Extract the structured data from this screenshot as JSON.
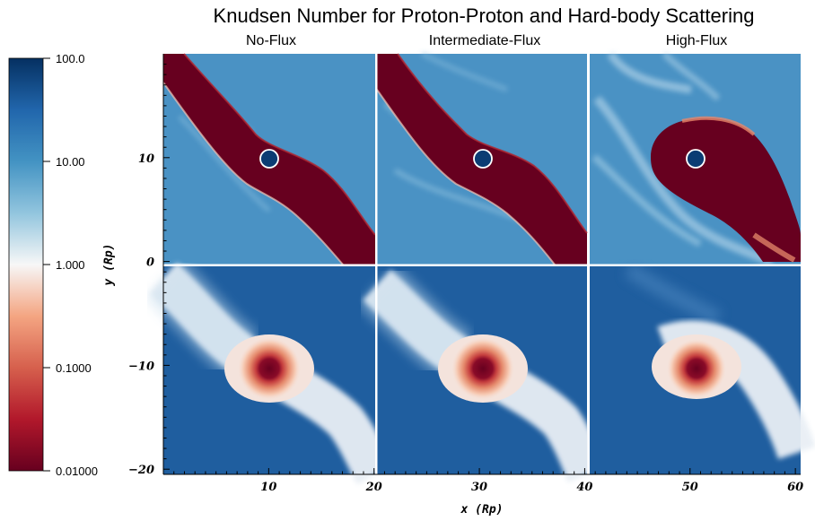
{
  "chart_data": {
    "type": "heatmap",
    "title": "Knudsen Number for Proton-Proton and Hard-body Scattering",
    "columns": [
      "No-Flux",
      "Intermediate-Flux",
      "High-Flux"
    ],
    "xlabel": "x (Rp)",
    "ylabel": "y (Rp)",
    "x_ticks": [
      "10",
      "20",
      "30",
      "40",
      "50",
      "60"
    ],
    "y_ticks": [
      "10",
      "0",
      "−10",
      "−20"
    ],
    "xlim": [
      0,
      60.5
    ],
    "ylim": [
      -20.5,
      20
    ],
    "colorbar": {
      "scale": "log",
      "min": 0.01,
      "max": 100.0,
      "tick_labels": [
        "100.0",
        "10.00",
        "1.000",
        "0.1000",
        "0.01000"
      ],
      "colormap": "RdBu"
    },
    "panels": [
      {
        "row": "top",
        "column": "No-Flux",
        "planet_center": [
          10,
          10
        ]
      },
      {
        "row": "top",
        "column": "Intermediate-Flux",
        "planet_center": [
          30,
          10
        ]
      },
      {
        "row": "top",
        "column": "High-Flux",
        "planet_center": [
          50,
          10
        ]
      },
      {
        "row": "bottom",
        "column": "No-Flux",
        "planet_center": [
          10,
          -10
        ]
      },
      {
        "row": "bottom",
        "column": "Intermediate-Flux",
        "planet_center": [
          30,
          -10
        ]
      },
      {
        "row": "bottom",
        "column": "High-Flux",
        "planet_center": [
          50,
          -10
        ]
      }
    ],
    "colors": {
      "dark_red": "#67001f",
      "dark_blue": "#053061",
      "bg_top": "#4a92c4",
      "bg_bottom": "#1f5e9f",
      "white": "#f7f7f7"
    }
  }
}
